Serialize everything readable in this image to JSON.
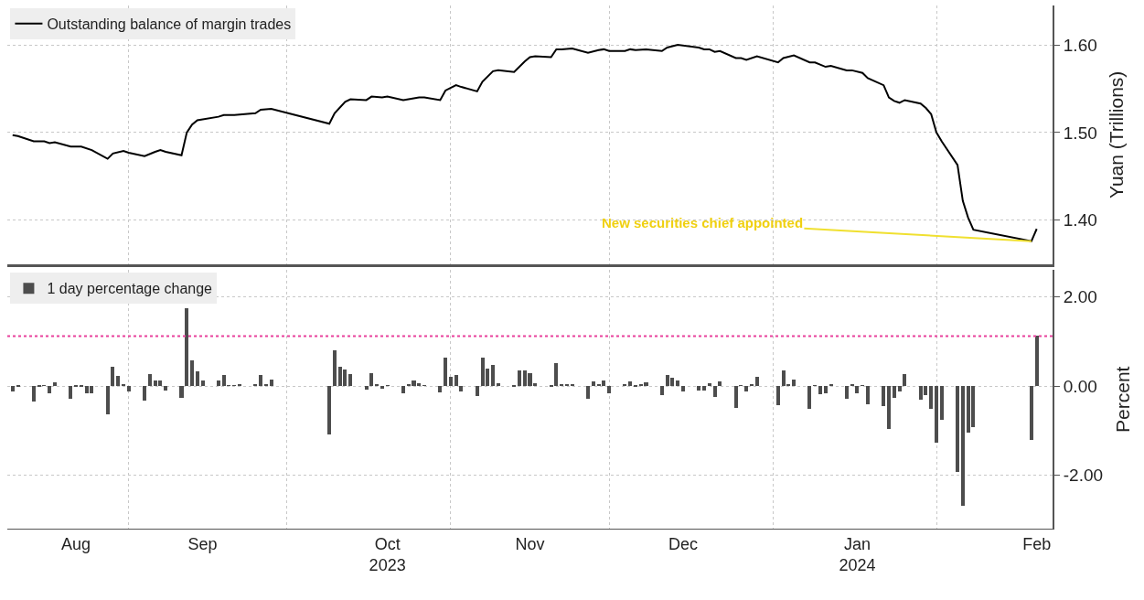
{
  "chart_data": [
    {
      "type": "line",
      "ylabel": "Yuan (Trillions)",
      "ylim": [
        1.35,
        1.645
      ],
      "yticks": [
        {
          "value": 1.4,
          "label": "1.40"
        },
        {
          "value": 1.5,
          "label": "1.50"
        },
        {
          "value": 1.6,
          "label": "1.60"
        }
      ],
      "xlim": [
        "2023-08-09",
        "2024-02-23"
      ],
      "xticks": [
        {
          "value": "2023-09-01",
          "label": null
        },
        {
          "value": "2023-10-01",
          "label": null
        },
        {
          "value": "2023-11-01",
          "label": null
        },
        {
          "value": "2023-12-01",
          "label": null
        },
        {
          "value": "2024-01-01",
          "label": null
        },
        {
          "value": "2024-02-01",
          "label": null
        }
      ],
      "grid": true,
      "legend": "top left",
      "tick_labels": "y",
      "annotations": [
        {
          "text": "New securities chief appointed",
          "x": "2024-02-19",
          "y": 1.376
        }
      ],
      "series": [
        {
          "name": "Outstanding balance of margin trades",
          "color": "#000000",
          "x": [
            "2023-08-10",
            "2023-08-11",
            "2023-08-14",
            "2023-08-16",
            "2023-08-17",
            "2023-08-18",
            "2023-08-21",
            "2023-08-23",
            "2023-08-25",
            "2023-08-28",
            "2023-08-29",
            "2023-08-31",
            "2023-09-01",
            "2023-09-04",
            "2023-09-06",
            "2023-09-07",
            "2023-09-08",
            "2023-09-11",
            "2023-09-12",
            "2023-09-13",
            "2023-09-14",
            "2023-09-18",
            "2023-09-19",
            "2023-09-21",
            "2023-09-25",
            "2023-09-26",
            "2023-09-28",
            "2023-10-09",
            "2023-10-10",
            "2023-10-12",
            "2023-10-13",
            "2023-10-16",
            "2023-10-17",
            "2023-10-19",
            "2023-10-20",
            "2023-10-23",
            "2023-10-24",
            "2023-10-26",
            "2023-10-27",
            "2023-10-30",
            "2023-10-31",
            "2023-11-02",
            "2023-11-03",
            "2023-11-06",
            "2023-11-07",
            "2023-11-09",
            "2023-11-10",
            "2023-11-13",
            "2023-11-15",
            "2023-11-16",
            "2023-11-17",
            "2023-11-20",
            "2023-11-21",
            "2023-11-22",
            "2023-11-24",
            "2023-11-27",
            "2023-11-29",
            "2023-11-30",
            "2023-12-01",
            "2023-12-04",
            "2023-12-05",
            "2023-12-06",
            "2023-12-08",
            "2023-12-11",
            "2023-12-12",
            "2023-12-14",
            "2023-12-18",
            "2023-12-19",
            "2023-12-20",
            "2023-12-21",
            "2023-12-22",
            "2023-12-25",
            "2023-12-26",
            "2023-12-27",
            "2023-12-29",
            "2024-01-02",
            "2024-01-03",
            "2024-01-05",
            "2024-01-08",
            "2024-01-09",
            "2024-01-11",
            "2024-01-12",
            "2024-01-15",
            "2024-01-16",
            "2024-01-18",
            "2024-01-19",
            "2024-01-22",
            "2024-01-23",
            "2024-01-24",
            "2024-01-25",
            "2024-01-26",
            "2024-01-29",
            "2024-01-30",
            "2024-01-31",
            "2024-02-01",
            "2024-02-02",
            "2024-02-05",
            "2024-02-06",
            "2024-02-07",
            "2024-02-08",
            "2024-02-19",
            "2024-02-20"
          ],
          "values": [
            1.497,
            1.496,
            1.49,
            1.49,
            1.488,
            1.489,
            1.484,
            1.484,
            1.48,
            1.47,
            1.476,
            1.479,
            1.477,
            1.473,
            1.478,
            1.48,
            1.478,
            1.474,
            1.5,
            1.509,
            1.514,
            1.518,
            1.52,
            1.52,
            1.522,
            1.526,
            1.527,
            1.51,
            1.522,
            1.535,
            1.538,
            1.537,
            1.541,
            1.54,
            1.541,
            1.537,
            1.538,
            1.54,
            1.54,
            1.537,
            1.548,
            1.554,
            1.552,
            1.547,
            1.558,
            1.57,
            1.571,
            1.569,
            1.581,
            1.586,
            1.587,
            1.586,
            1.595,
            1.595,
            1.596,
            1.591,
            1.594,
            1.595,
            1.593,
            1.593,
            1.595,
            1.594,
            1.595,
            1.593,
            1.597,
            1.6,
            1.597,
            1.595,
            1.595,
            1.592,
            1.593,
            1.585,
            1.585,
            1.583,
            1.587,
            1.58,
            1.585,
            1.588,
            1.58,
            1.58,
            1.575,
            1.576,
            1.571,
            1.571,
            1.568,
            1.562,
            1.554,
            1.54,
            1.536,
            1.534,
            1.537,
            1.533,
            1.528,
            1.521,
            1.5,
            1.49,
            1.463,
            1.422,
            1.403,
            1.389,
            1.376,
            1.39
          ]
        }
      ]
    },
    {
      "type": "bar",
      "ylabel": "Percent",
      "ylim": [
        -3.2,
        2.6
      ],
      "yticks": [
        {
          "value": -2,
          "label": "-2.00"
        },
        {
          "value": 0,
          "label": "0.00"
        },
        {
          "value": 2,
          "label": "2.00"
        }
      ],
      "xlim": [
        "2023-08-09",
        "2024-02-23"
      ],
      "xticks": [
        {
          "value": "2023-08-22",
          "label": "Aug"
        },
        {
          "value": "2023-09-15",
          "label": "Sep"
        },
        {
          "value": "2023-10-20",
          "label": "Oct\n2023"
        },
        {
          "value": "2023-11-16",
          "label": "Nov"
        },
        {
          "value": "2023-12-15",
          "label": "Dec"
        },
        {
          "value": "2024-01-17",
          "label": "Jan\n2024"
        },
        {
          "value": "2024-02-20",
          "label": "Feb"
        },
        {
          "value": "2023-09-01",
          "label": null
        },
        {
          "value": "2023-10-01",
          "label": null
        },
        {
          "value": "2023-11-01",
          "label": null
        },
        {
          "value": "2023-12-01",
          "label": null
        },
        {
          "value": "2024-01-01",
          "label": null
        },
        {
          "value": "2024-02-01",
          "label": null
        }
      ],
      "grid": true,
      "legend": "top left",
      "ref_lines": [
        {
          "axis": "y",
          "value": 1.12,
          "color": "#e8409c",
          "line_style": "dotted"
        }
      ],
      "x": [
        "2023-08-10",
        "2023-08-11",
        "2023-08-14",
        "2023-08-15",
        "2023-08-16",
        "2023-08-17",
        "2023-08-18",
        "2023-08-21",
        "2023-08-22",
        "2023-08-23",
        "2023-08-24",
        "2023-08-25",
        "2023-08-28",
        "2023-08-29",
        "2023-08-30",
        "2023-08-31",
        "2023-09-01",
        "2023-09-04",
        "2023-09-05",
        "2023-09-06",
        "2023-09-07",
        "2023-09-08",
        "2023-09-11",
        "2023-09-12",
        "2023-09-13",
        "2023-09-14",
        "2023-09-15",
        "2023-09-18",
        "2023-09-19",
        "2023-09-20",
        "2023-09-21",
        "2023-09-22",
        "2023-09-25",
        "2023-09-26",
        "2023-09-27",
        "2023-09-28",
        "2023-10-09",
        "2023-10-10",
        "2023-10-11",
        "2023-10-12",
        "2023-10-13",
        "2023-10-16",
        "2023-10-17",
        "2023-10-18",
        "2023-10-19",
        "2023-10-20",
        "2023-10-23",
        "2023-10-24",
        "2023-10-25",
        "2023-10-26",
        "2023-10-27",
        "2023-10-30",
        "2023-10-31",
        "2023-11-01",
        "2023-11-02",
        "2023-11-03",
        "2023-11-06",
        "2023-11-07",
        "2023-11-08",
        "2023-11-09",
        "2023-11-10",
        "2023-11-13",
        "2023-11-14",
        "2023-11-15",
        "2023-11-16",
        "2023-11-17",
        "2023-11-20",
        "2023-11-21",
        "2023-11-22",
        "2023-11-23",
        "2023-11-24",
        "2023-11-27",
        "2023-11-28",
        "2023-11-29",
        "2023-11-30",
        "2023-12-01",
        "2023-12-04",
        "2023-12-05",
        "2023-12-06",
        "2023-12-07",
        "2023-12-08",
        "2023-12-11",
        "2023-12-12",
        "2023-12-13",
        "2023-12-14",
        "2023-12-15",
        "2023-12-18",
        "2023-12-19",
        "2023-12-20",
        "2023-12-21",
        "2023-12-22",
        "2023-12-25",
        "2023-12-26",
        "2023-12-27",
        "2023-12-28",
        "2023-12-29",
        "2024-01-02",
        "2024-01-03",
        "2024-01-04",
        "2024-01-05",
        "2024-01-08",
        "2024-01-09",
        "2024-01-10",
        "2024-01-11",
        "2024-01-12",
        "2024-01-15",
        "2024-01-16",
        "2024-01-17",
        "2024-01-18",
        "2024-01-19",
        "2024-01-22",
        "2024-01-23",
        "2024-01-24",
        "2024-01-25",
        "2024-01-26",
        "2024-01-29",
        "2024-01-30",
        "2024-01-31",
        "2024-02-01",
        "2024-02-02",
        "2024-02-05",
        "2024-02-06",
        "2024-02-07",
        "2024-02-08",
        "2024-02-19",
        "2024-02-20"
      ],
      "series": [
        {
          "name": "1 day percentage change",
          "color": "#4d4d4d",
          "values": [
            -0.13,
            -0.03,
            -0.35,
            -0.02,
            0.01,
            -0.17,
            0.07,
            -0.3,
            -0.02,
            -0.02,
            -0.18,
            -0.17,
            -0.65,
            0.42,
            0.21,
            0.04,
            -0.13,
            -0.33,
            0.26,
            0.12,
            0.12,
            -0.11,
            -0.28,
            1.73,
            0.57,
            0.33,
            0.12,
            0.11,
            0.23,
            0.01,
            0.01,
            0.02,
            0.02,
            0.23,
            0.02,
            0.14,
            -1.1,
            0.79,
            0.42,
            0.37,
            0.25,
            -0.08,
            0.28,
            0.02,
            -0.06,
            0.01,
            -0.18,
            0.02,
            0.11,
            0.06,
            0.01,
            -0.15,
            0.63,
            0.19,
            0.23,
            -0.13,
            -0.23,
            0.62,
            0.38,
            0.47,
            0.06,
            -0.03,
            0.35,
            0.35,
            0.28,
            0.05,
            -0.01,
            0.51,
            0.02,
            0.02,
            0.03,
            -0.3,
            0.09,
            0.02,
            0.11,
            -0.18,
            0.02,
            0.1,
            -0.01,
            0.02,
            0.08,
            -0.21,
            0.23,
            0.17,
            0.11,
            -0.13,
            -0.1,
            -0.11,
            0.06,
            -0.26,
            0.09,
            -0.5,
            0.01,
            -0.13,
            0.03,
            0.2,
            -0.43,
            0.35,
            0.03,
            0.13,
            -0.52,
            0.01,
            -0.2,
            -0.17,
            0.03,
            -0.3,
            0.03,
            -0.17,
            0.01,
            -0.41,
            -0.46,
            -0.97,
            -0.27,
            -0.13,
            0.26,
            -0.32,
            -0.22,
            -0.52,
            -1.28,
            -0.77,
            -1.94,
            -2.7,
            -1.06,
            -0.94,
            -1.21,
            1.12
          ]
        }
      ]
    }
  ]
}
